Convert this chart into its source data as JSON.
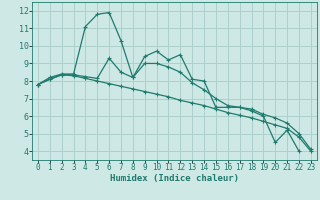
{
  "bg_color": "#cde8e5",
  "grid_color": "#aed0cc",
  "line_color": "#1e7b6e",
  "xlabel": "Humidex (Indice chaleur)",
  "xlabel_fontsize": 6.5,
  "ytick_fontsize": 6,
  "xtick_fontsize": 5.5,
  "ylim": [
    3.5,
    12.5
  ],
  "xlim": [
    -0.5,
    23.5
  ],
  "yticks": [
    4,
    5,
    6,
    7,
    8,
    9,
    10,
    11,
    12
  ],
  "xticks": [
    0,
    1,
    2,
    3,
    4,
    5,
    6,
    7,
    8,
    9,
    10,
    11,
    12,
    13,
    14,
    15,
    16,
    17,
    18,
    19,
    20,
    21,
    22,
    23
  ],
  "lines": [
    {
      "x": [
        0,
        1,
        2,
        3,
        4,
        5,
        6,
        7,
        8,
        9,
        10,
        11,
        12,
        13,
        14,
        15,
        16,
        17,
        18,
        19,
        20,
        21,
        22
      ],
      "y": [
        7.8,
        8.2,
        8.4,
        8.4,
        11.1,
        11.8,
        11.9,
        10.3,
        8.2,
        9.4,
        9.7,
        9.2,
        9.5,
        8.1,
        8.0,
        6.5,
        6.5,
        6.5,
        6.3,
        6.0,
        4.5,
        5.2,
        4.0
      ]
    },
    {
      "x": [
        0,
        1,
        2,
        3,
        4,
        5,
        6,
        7,
        8,
        9,
        10,
        11,
        12,
        13,
        14,
        15,
        16,
        17,
        18,
        19,
        20,
        21,
        22,
        23
      ],
      "y": [
        7.8,
        8.1,
        8.35,
        8.3,
        8.15,
        8.0,
        7.85,
        7.7,
        7.55,
        7.4,
        7.25,
        7.1,
        6.9,
        6.75,
        6.6,
        6.4,
        6.2,
        6.05,
        5.9,
        5.7,
        5.5,
        5.3,
        4.8,
        4.0
      ]
    },
    {
      "x": [
        0,
        1,
        2,
        3,
        4,
        5,
        6,
        7,
        8,
        9,
        10,
        11,
        12,
        13,
        14,
        15,
        16,
        17,
        18,
        19,
        20,
        21,
        22,
        23
      ],
      "y": [
        7.8,
        8.1,
        8.35,
        8.35,
        8.25,
        8.15,
        9.3,
        8.5,
        8.2,
        9.0,
        9.0,
        8.8,
        8.5,
        7.9,
        7.5,
        7.0,
        6.6,
        6.5,
        6.4,
        6.1,
        5.9,
        5.6,
        5.0,
        4.1
      ]
    }
  ]
}
